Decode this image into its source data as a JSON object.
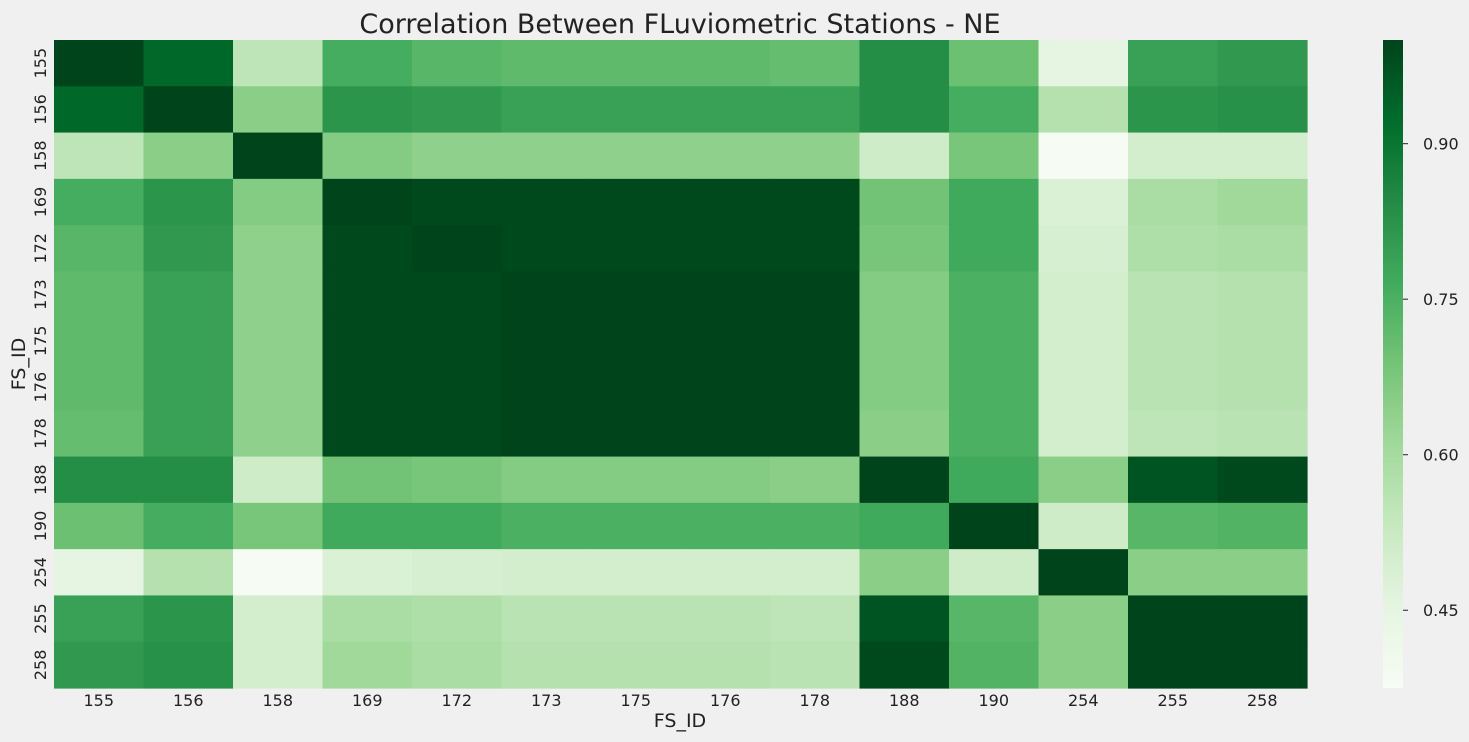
{
  "chart_data": {
    "type": "heatmap",
    "title": "Correlation Between FLuviometric Stations - NE",
    "xlabel": "FS_ID",
    "ylabel": "FS_ID",
    "x_categories": [
      "155",
      "156",
      "158",
      "169",
      "172",
      "173",
      "175",
      "176",
      "178",
      "188",
      "190",
      "254",
      "255",
      "258"
    ],
    "y_categories": [
      "155",
      "156",
      "158",
      "169",
      "172",
      "173",
      "175",
      "176",
      "178",
      "188",
      "190",
      "254",
      "255",
      "258"
    ],
    "values": [
      [
        1.0,
        0.93,
        0.55,
        0.76,
        0.73,
        0.72,
        0.72,
        0.72,
        0.71,
        0.84,
        0.7,
        0.45,
        0.79,
        0.81
      ],
      [
        0.93,
        1.0,
        0.65,
        0.82,
        0.81,
        0.79,
        0.79,
        0.79,
        0.79,
        0.84,
        0.76,
        0.57,
        0.82,
        0.83
      ],
      [
        0.55,
        0.65,
        1.0,
        0.66,
        0.64,
        0.64,
        0.64,
        0.64,
        0.64,
        0.51,
        0.68,
        0.38,
        0.5,
        0.5
      ],
      [
        0.76,
        0.82,
        0.66,
        1.0,
        0.99,
        0.99,
        0.99,
        0.99,
        0.99,
        0.69,
        0.77,
        0.48,
        0.59,
        0.61
      ],
      [
        0.73,
        0.81,
        0.64,
        0.99,
        1.0,
        0.99,
        0.99,
        0.99,
        0.99,
        0.68,
        0.77,
        0.49,
        0.58,
        0.59
      ],
      [
        0.72,
        0.79,
        0.64,
        0.99,
        0.99,
        1.0,
        1.0,
        1.0,
        1.0,
        0.66,
        0.75,
        0.5,
        0.56,
        0.57
      ],
      [
        0.72,
        0.79,
        0.64,
        0.99,
        0.99,
        1.0,
        1.0,
        1.0,
        1.0,
        0.66,
        0.75,
        0.5,
        0.56,
        0.57
      ],
      [
        0.72,
        0.79,
        0.64,
        0.99,
        0.99,
        1.0,
        1.0,
        1.0,
        1.0,
        0.66,
        0.75,
        0.5,
        0.56,
        0.57
      ],
      [
        0.71,
        0.79,
        0.64,
        0.99,
        0.99,
        1.0,
        1.0,
        1.0,
        1.0,
        0.65,
        0.75,
        0.5,
        0.55,
        0.56
      ],
      [
        0.84,
        0.84,
        0.51,
        0.69,
        0.68,
        0.66,
        0.66,
        0.66,
        0.65,
        1.0,
        0.77,
        0.65,
        0.97,
        0.99
      ],
      [
        0.7,
        0.76,
        0.68,
        0.77,
        0.77,
        0.75,
        0.75,
        0.75,
        0.75,
        0.77,
        1.0,
        0.51,
        0.73,
        0.74
      ],
      [
        0.45,
        0.57,
        0.38,
        0.48,
        0.49,
        0.5,
        0.5,
        0.5,
        0.5,
        0.65,
        0.51,
        1.0,
        0.65,
        0.65
      ],
      [
        0.79,
        0.82,
        0.5,
        0.59,
        0.58,
        0.56,
        0.56,
        0.56,
        0.55,
        0.97,
        0.73,
        0.65,
        1.0,
        1.0
      ],
      [
        0.81,
        0.83,
        0.5,
        0.61,
        0.59,
        0.57,
        0.57,
        0.57,
        0.56,
        0.99,
        0.74,
        0.65,
        1.0,
        1.0
      ]
    ],
    "colormap": "Greens",
    "vmin": 0.375,
    "vmax": 1.0,
    "colorbar_ticks": [
      0.45,
      0.6,
      0.75,
      0.9
    ],
    "colorbar_tick_labels": [
      "0.45",
      "0.60",
      "0.75",
      "0.90"
    ],
    "colors": {
      "background": "#f0f0f0",
      "greens_stops": [
        "#f7fcf5",
        "#e5f5e0",
        "#c7e9c0",
        "#a1d99b",
        "#74c476",
        "#41ab5d",
        "#238b45",
        "#006d2c",
        "#00441b"
      ]
    }
  }
}
